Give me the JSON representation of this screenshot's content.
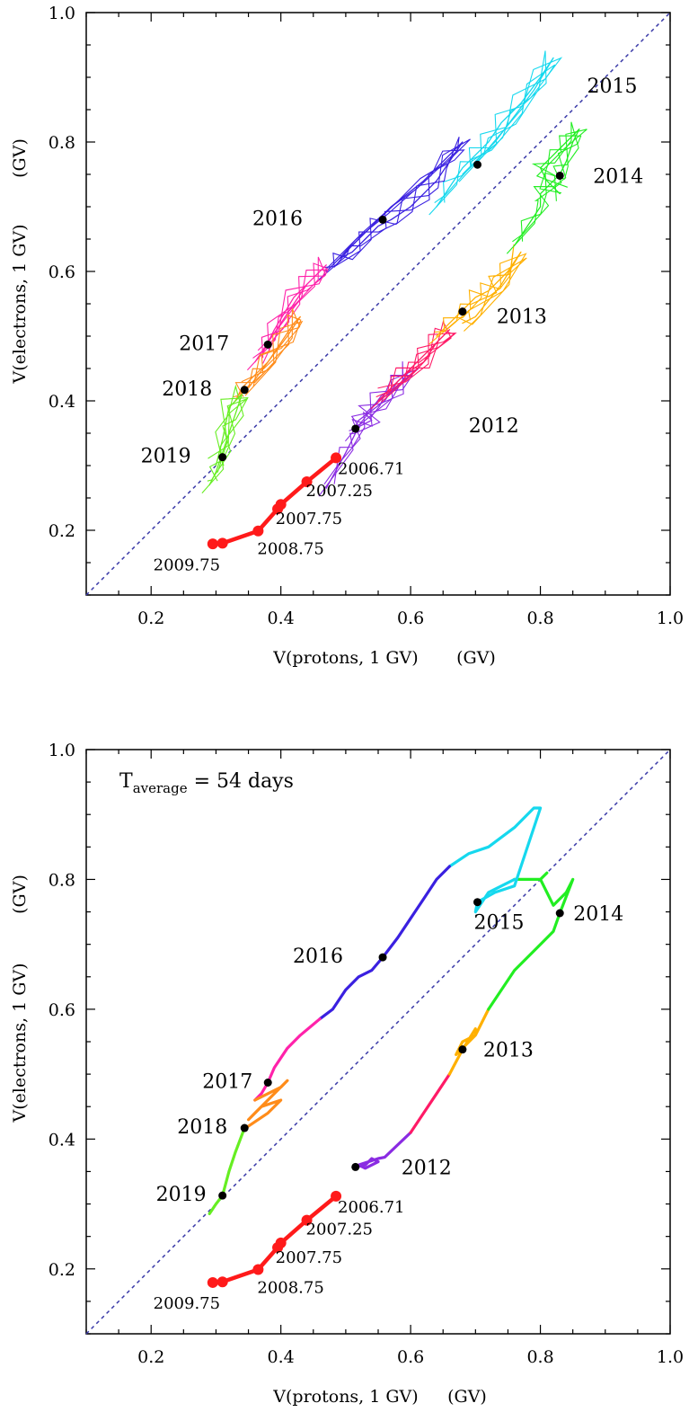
{
  "chart_data": [
    {
      "type": "line",
      "title": "",
      "xlabel": "V(protons, 1 GV)",
      "xunit": "(GV)",
      "ylabel": "V(electrons, 1 GV)",
      "yunit": "(GV)",
      "xlim": [
        0.1,
        1.0
      ],
      "ylim": [
        0.1,
        1.0
      ],
      "xticks": [
        "0.2",
        "0.4",
        "0.6",
        "0.8",
        "1.0"
      ],
      "yticks": [
        "0.2",
        "0.4",
        "0.6",
        "0.8",
        "1.0"
      ],
      "annotation": "",
      "reference_line": {
        "style": "dashed",
        "color": "#3a3aa8",
        "x": [
          0.1,
          1.0
        ],
        "y": [
          0.1,
          1.0
        ]
      },
      "red_track": {
        "color": "#ff1a1a",
        "x": [
          0.485,
          0.44,
          0.4,
          0.395,
          0.365,
          0.31,
          0.295
        ],
        "y": [
          0.312,
          0.275,
          0.24,
          0.233,
          0.199,
          0.18,
          0.179
        ],
        "labels": [
          "2006.71",
          "2007.25",
          "2007.75",
          "2007.75",
          "2008.75",
          "2009.75",
          "2009.75"
        ]
      },
      "year_points": [
        {
          "label": "2012",
          "x": 0.515,
          "y": 0.357
        },
        {
          "label": "2013",
          "x": 0.68,
          "y": 0.538
        },
        {
          "label": "2014",
          "x": 0.83,
          "y": 0.748
        },
        {
          "label": "2015",
          "x": 0.703,
          "y": 0.765
        },
        {
          "label": "2016",
          "x": 0.557,
          "y": 0.68
        },
        {
          "label": "2017",
          "x": 0.38,
          "y": 0.487
        },
        {
          "label": "2018",
          "x": 0.344,
          "y": 0.417
        },
        {
          "label": "2019",
          "x": 0.31,
          "y": 0.313
        }
      ],
      "series": [
        {
          "color": "#8a2be2",
          "x": [
            0.47,
            0.5,
            0.51,
            0.52,
            0.54,
            0.53,
            0.55,
            0.58,
            0.6,
            0.58,
            0.56,
            0.52,
            0.51
          ],
          "y": [
            0.265,
            0.32,
            0.34,
            0.36,
            0.37,
            0.38,
            0.4,
            0.42,
            0.45,
            0.43,
            0.4,
            0.37,
            0.35
          ]
        },
        {
          "color": "#ff1a66",
          "x": [
            0.55,
            0.58,
            0.6,
            0.62,
            0.65,
            0.66,
            0.64,
            0.62,
            0.59,
            0.56
          ],
          "y": [
            0.4,
            0.43,
            0.45,
            0.47,
            0.5,
            0.51,
            0.49,
            0.46,
            0.44,
            0.41
          ]
        },
        {
          "color": "#ffb000",
          "x": [
            0.64,
            0.66,
            0.68,
            0.7,
            0.72,
            0.73,
            0.75,
            0.77,
            0.74,
            0.7,
            0.68
          ],
          "y": [
            0.5,
            0.52,
            0.54,
            0.56,
            0.57,
            0.58,
            0.6,
            0.63,
            0.58,
            0.53,
            0.52
          ]
        },
        {
          "color": "#22ee22",
          "x": [
            0.76,
            0.78,
            0.8,
            0.8,
            0.82,
            0.83,
            0.84,
            0.85,
            0.86,
            0.84,
            0.82,
            0.8,
            0.81,
            0.83
          ],
          "y": [
            0.64,
            0.67,
            0.7,
            0.72,
            0.74,
            0.75,
            0.77,
            0.8,
            0.82,
            0.8,
            0.78,
            0.76,
            0.74,
            0.72
          ]
        },
        {
          "color": "#16d8ee",
          "x": [
            0.64,
            0.66,
            0.68,
            0.7,
            0.72,
            0.74,
            0.77,
            0.8,
            0.82,
            0.79,
            0.76,
            0.73,
            0.7,
            0.68
          ],
          "y": [
            0.7,
            0.73,
            0.76,
            0.78,
            0.8,
            0.83,
            0.86,
            0.9,
            0.93,
            0.88,
            0.84,
            0.8,
            0.77,
            0.75
          ]
        },
        {
          "color": "#3a20e0",
          "x": [
            0.47,
            0.49,
            0.51,
            0.53,
            0.55,
            0.57,
            0.6,
            0.62,
            0.64,
            0.66,
            0.68,
            0.66,
            0.62,
            0.57,
            0.52,
            0.48
          ],
          "y": [
            0.6,
            0.62,
            0.63,
            0.65,
            0.67,
            0.68,
            0.7,
            0.72,
            0.74,
            0.77,
            0.8,
            0.78,
            0.74,
            0.7,
            0.65,
            0.61
          ]
        },
        {
          "color": "#ff22aa",
          "x": [
            0.36,
            0.38,
            0.4,
            0.42,
            0.44,
            0.46,
            0.47,
            0.45,
            0.42,
            0.39,
            0.37
          ],
          "y": [
            0.46,
            0.49,
            0.52,
            0.55,
            0.58,
            0.6,
            0.61,
            0.59,
            0.56,
            0.51,
            0.47
          ]
        },
        {
          "color": "#ff8c1a",
          "x": [
            0.33,
            0.34,
            0.36,
            0.38,
            0.4,
            0.42,
            0.43,
            0.41,
            0.38,
            0.35
          ],
          "y": [
            0.4,
            0.42,
            0.44,
            0.46,
            0.49,
            0.52,
            0.53,
            0.5,
            0.46,
            0.42
          ]
        },
        {
          "color": "#66ee22",
          "x": [
            0.29,
            0.3,
            0.31,
            0.32,
            0.33,
            0.34,
            0.32,
            0.31,
            0.3
          ],
          "y": [
            0.27,
            0.29,
            0.32,
            0.35,
            0.38,
            0.41,
            0.39,
            0.34,
            0.3
          ]
        }
      ]
    },
    {
      "type": "line",
      "title": "",
      "xlabel": "V(protons, 1 GV)",
      "xunit": "(GV)",
      "ylabel": "V(electrons, 1 GV)",
      "yunit": "(GV)",
      "xlim": [
        0.1,
        1.0
      ],
      "ylim": [
        0.1,
        1.0
      ],
      "xticks": [
        "0.2",
        "0.4",
        "0.6",
        "0.8",
        "1.0"
      ],
      "yticks": [
        "0.2",
        "0.4",
        "0.6",
        "0.8",
        "1.0"
      ],
      "annotation": {
        "prefix": "T",
        "sub": "average",
        "suffix": " = 54 days"
      },
      "reference_line": {
        "style": "dashed",
        "color": "#3a3aa8",
        "x": [
          0.1,
          1.0
        ],
        "y": [
          0.1,
          1.0
        ]
      },
      "red_track": {
        "color": "#ff1a1a",
        "x": [
          0.485,
          0.44,
          0.4,
          0.395,
          0.365,
          0.31,
          0.295
        ],
        "y": [
          0.312,
          0.275,
          0.24,
          0.233,
          0.199,
          0.18,
          0.179
        ],
        "labels": [
          "2006.71",
          "2007.25",
          "2007.75",
          "2007.75",
          "2008.75",
          "2009.75",
          "2009.75"
        ]
      },
      "year_points": [
        {
          "label": "2012",
          "x": 0.515,
          "y": 0.357
        },
        {
          "label": "2013",
          "x": 0.68,
          "y": 0.538
        },
        {
          "label": "2014",
          "x": 0.83,
          "y": 0.748
        },
        {
          "label": "2015",
          "x": 0.703,
          "y": 0.765
        },
        {
          "label": "2016",
          "x": 0.557,
          "y": 0.68
        },
        {
          "label": "2017",
          "x": 0.38,
          "y": 0.487
        },
        {
          "label": "2018",
          "x": 0.344,
          "y": 0.417
        },
        {
          "label": "2019",
          "x": 0.31,
          "y": 0.313
        }
      ],
      "series": [
        {
          "color": "#8a2be2",
          "x": [
            0.515,
            0.53,
            0.54,
            0.55,
            0.53,
            0.52,
            0.55,
            0.56,
            0.6
          ],
          "y": [
            0.357,
            0.36,
            0.37,
            0.365,
            0.355,
            0.36,
            0.37,
            0.372,
            0.41
          ]
        },
        {
          "color": "#ff1a66",
          "x": [
            0.6,
            0.62,
            0.64,
            0.66
          ],
          "y": [
            0.41,
            0.44,
            0.47,
            0.5
          ]
        },
        {
          "color": "#ffb000",
          "x": [
            0.66,
            0.68,
            0.7,
            0.7,
            0.68,
            0.67,
            0.7,
            0.72
          ],
          "y": [
            0.5,
            0.538,
            0.57,
            0.56,
            0.55,
            0.53,
            0.56,
            0.6
          ]
        },
        {
          "color": "#22ee22",
          "x": [
            0.72,
            0.76,
            0.8,
            0.82,
            0.83,
            0.85,
            0.84,
            0.82,
            0.8,
            0.81,
            0.8,
            0.76
          ],
          "y": [
            0.6,
            0.66,
            0.7,
            0.72,
            0.748,
            0.8,
            0.78,
            0.76,
            0.8,
            0.81,
            0.8,
            0.8
          ]
        },
        {
          "color": "#16d8ee",
          "x": [
            0.76,
            0.72,
            0.7,
            0.703,
            0.73,
            0.76,
            0.8,
            0.79,
            0.76,
            0.72,
            0.69,
            0.66
          ],
          "y": [
            0.8,
            0.78,
            0.75,
            0.765,
            0.78,
            0.79,
            0.91,
            0.91,
            0.88,
            0.85,
            0.84,
            0.82
          ]
        },
        {
          "color": "#3a20e0",
          "x": [
            0.66,
            0.64,
            0.62,
            0.6,
            0.58,
            0.557,
            0.54,
            0.52,
            0.5,
            0.48,
            0.46
          ],
          "y": [
            0.82,
            0.8,
            0.77,
            0.74,
            0.71,
            0.68,
            0.66,
            0.65,
            0.63,
            0.6,
            0.585
          ]
        },
        {
          "color": "#ff22aa",
          "x": [
            0.46,
            0.43,
            0.41,
            0.39,
            0.38,
            0.37,
            0.36
          ],
          "y": [
            0.585,
            0.56,
            0.54,
            0.51,
            0.487,
            0.47,
            0.46
          ]
        },
        {
          "color": "#ff8c1a",
          "x": [
            0.36,
            0.38,
            0.4,
            0.41,
            0.39,
            0.36,
            0.35,
            0.37,
            0.4,
            0.38,
            0.35,
            0.344
          ],
          "y": [
            0.46,
            0.47,
            0.48,
            0.49,
            0.47,
            0.44,
            0.43,
            0.45,
            0.46,
            0.44,
            0.42,
            0.417
          ]
        },
        {
          "color": "#66ee22",
          "x": [
            0.344,
            0.33,
            0.32,
            0.31,
            0.3,
            0.29
          ],
          "y": [
            0.417,
            0.38,
            0.35,
            0.313,
            0.3,
            0.285
          ]
        }
      ]
    }
  ]
}
